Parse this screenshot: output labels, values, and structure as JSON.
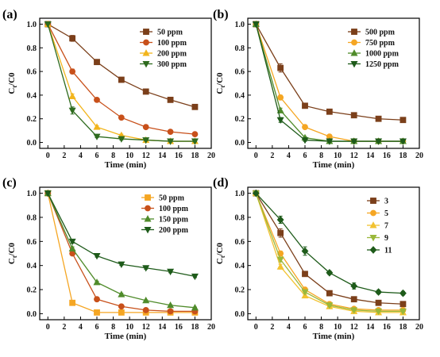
{
  "chart_data": [
    {
      "type": "line",
      "panel_label": "(a)",
      "xlabel": "Time (min)",
      "ylabel_main": "C",
      "ylabel_sub": "t",
      "ylabel_tail": "/C0",
      "xlim": [
        -1,
        20
      ],
      "ylim": [
        -0.05,
        1.05
      ],
      "xticks": [
        0,
        2,
        4,
        6,
        8,
        10,
        12,
        14,
        16,
        18,
        20
      ],
      "yticks": [
        0.0,
        0.2,
        0.4,
        0.6,
        0.8,
        1.0
      ],
      "ytick_labels": [
        "0.0",
        "0.2",
        "0.4",
        "0.6",
        "0.8",
        "1.0"
      ],
      "legend_position": "top-right",
      "x": [
        0,
        3,
        6,
        9,
        12,
        15,
        18
      ],
      "series": [
        {
          "name": "50 ppm",
          "color": "#7b3f1a",
          "marker": "square",
          "values": [
            1.0,
            0.88,
            0.68,
            0.53,
            0.43,
            0.36,
            0.3
          ],
          "errors": [
            0,
            0.025,
            0.015,
            0.012,
            0.01,
            0.01,
            0.015
          ]
        },
        {
          "name": "100 ppm",
          "color": "#c8501a",
          "marker": "circle",
          "values": [
            1.0,
            0.6,
            0.36,
            0.21,
            0.13,
            0.09,
            0.07
          ],
          "errors": [
            0,
            0.02,
            0.015,
            0.01,
            0.01,
            0.01,
            0.01
          ]
        },
        {
          "name": "200 ppm",
          "color": "#f2b51c",
          "marker": "triangle-up",
          "values": [
            1.0,
            0.39,
            0.13,
            0.06,
            0.02,
            0.01,
            0.01
          ],
          "errors": [
            0,
            0.02,
            0.01,
            0.01,
            0.005,
            0.005,
            0.005
          ]
        },
        {
          "name": "300 ppm",
          "color": "#2e6b1e",
          "marker": "triangle-down",
          "values": [
            1.0,
            0.27,
            0.05,
            0.03,
            0.02,
            0.01,
            0.01
          ],
          "errors": [
            0,
            0.03,
            0.01,
            0.01,
            0.005,
            0.005,
            0.005
          ]
        }
      ]
    },
    {
      "type": "line",
      "panel_label": "(b)",
      "xlabel": "Time (min)",
      "ylabel_main": "C",
      "ylabel_sub": "t",
      "ylabel_tail": "/C0",
      "xlim": [
        -1,
        20
      ],
      "ylim": [
        -0.05,
        1.05
      ],
      "xticks": [
        0,
        2,
        4,
        6,
        8,
        10,
        12,
        14,
        16,
        18,
        20
      ],
      "yticks": [
        0.0,
        0.2,
        0.4,
        0.6,
        0.8,
        1.0
      ],
      "ytick_labels": [
        "0.0",
        "0.2",
        "0.4",
        "0.6",
        "0.8",
        "1.0"
      ],
      "legend_position": "top-right",
      "x": [
        0,
        3,
        6,
        9,
        12,
        15,
        18
      ],
      "series": [
        {
          "name": "500 ppm",
          "color": "#7b3f1a",
          "marker": "square",
          "values": [
            1.0,
            0.63,
            0.31,
            0.26,
            0.23,
            0.2,
            0.19
          ],
          "errors": [
            0,
            0.035,
            0.015,
            0.015,
            0.01,
            0.01,
            0.015
          ]
        },
        {
          "name": "750 ppm",
          "color": "#f5a623",
          "marker": "circle",
          "values": [
            1.0,
            0.38,
            0.13,
            0.05,
            0.01,
            0.01,
            0.01
          ],
          "errors": [
            0,
            0.02,
            0.01,
            0.01,
            0.005,
            0.005,
            0.005
          ]
        },
        {
          "name": "1000 ppm",
          "color": "#4f8b2a",
          "marker": "triangle-up",
          "values": [
            1.0,
            0.27,
            0.04,
            0.01,
            0.01,
            0.01,
            0.01
          ],
          "errors": [
            0,
            0.02,
            0.01,
            0.005,
            0.005,
            0.005,
            0.005
          ]
        },
        {
          "name": "1250 ppm",
          "color": "#1e5b1a",
          "marker": "triangle-down",
          "values": [
            1.0,
            0.19,
            0.02,
            0.01,
            0.01,
            0.01,
            0.01
          ],
          "errors": [
            0,
            0.02,
            0.01,
            0.005,
            0.005,
            0.005,
            0.005
          ]
        }
      ]
    },
    {
      "type": "line",
      "panel_label": "(c)",
      "xlabel": "Time (min)",
      "ylabel_main": "C",
      "ylabel_sub": "t",
      "ylabel_tail": "/C0",
      "xlim": [
        -1,
        20
      ],
      "ylim": [
        -0.05,
        1.05
      ],
      "xticks": [
        0,
        2,
        4,
        6,
        8,
        10,
        12,
        14,
        16,
        18,
        20
      ],
      "yticks": [
        0.0,
        0.2,
        0.4,
        0.6,
        0.8,
        1.0
      ],
      "ytick_labels": [
        "0.0",
        "0.2",
        "0.4",
        "0.6",
        "0.8",
        "1.0"
      ],
      "legend_position": "top-right",
      "x": [
        0,
        3,
        6,
        9,
        12,
        15,
        18
      ],
      "series": [
        {
          "name": "50 ppm",
          "color": "#f5a623",
          "marker": "square",
          "values": [
            1.0,
            0.09,
            0.01,
            0.01,
            0.01,
            0.01,
            0.01
          ],
          "errors": [
            0,
            0.02,
            0.005,
            0.005,
            0.005,
            0.005,
            0.005
          ]
        },
        {
          "name": "100 ppm",
          "color": "#c8501a",
          "marker": "circle",
          "values": [
            1.0,
            0.5,
            0.12,
            0.06,
            0.03,
            0.02,
            0.02
          ],
          "errors": [
            0,
            0.015,
            0.01,
            0.01,
            0.005,
            0.005,
            0.005
          ]
        },
        {
          "name": "150 ppm",
          "color": "#4f8b2a",
          "marker": "triangle-up",
          "values": [
            1.0,
            0.54,
            0.26,
            0.16,
            0.11,
            0.07,
            0.05
          ],
          "errors": [
            0,
            0.015,
            0.01,
            0.01,
            0.005,
            0.005,
            0.005
          ]
        },
        {
          "name": "200 ppm",
          "color": "#1e5b1a",
          "marker": "triangle-down",
          "values": [
            1.0,
            0.6,
            0.48,
            0.41,
            0.38,
            0.35,
            0.31
          ],
          "errors": [
            0,
            0.015,
            0.01,
            0.01,
            0.01,
            0.01,
            0.01
          ]
        }
      ]
    },
    {
      "type": "line",
      "panel_label": "(d)",
      "xlabel": "Time (min)",
      "ylabel_main": "C",
      "ylabel_sub": "t",
      "ylabel_tail": "/C0",
      "xlim": [
        -1,
        20
      ],
      "ylim": [
        -0.05,
        1.05
      ],
      "xticks": [
        0,
        2,
        4,
        6,
        8,
        10,
        12,
        14,
        16,
        18,
        20
      ],
      "yticks": [
        0.0,
        0.2,
        0.4,
        0.6,
        0.8,
        1.0
      ],
      "ytick_labels": [
        "0.0",
        "0.2",
        "0.4",
        "0.6",
        "0.8",
        "1.0"
      ],
      "legend_position": "top-right",
      "x": [
        0,
        3,
        6,
        9,
        12,
        15,
        18
      ],
      "series": [
        {
          "name": "3",
          "color": "#7b3f1a",
          "marker": "square",
          "values": [
            1.0,
            0.67,
            0.33,
            0.17,
            0.12,
            0.09,
            0.08
          ],
          "errors": [
            0,
            0.035,
            0.02,
            0.01,
            0.01,
            0.01,
            0.01
          ]
        },
        {
          "name": "5",
          "color": "#f5a623",
          "marker": "circle",
          "values": [
            1.0,
            0.5,
            0.2,
            0.08,
            0.04,
            0.03,
            0.03
          ],
          "errors": [
            0,
            0.02,
            0.015,
            0.01,
            0.005,
            0.005,
            0.005
          ]
        },
        {
          "name": "7",
          "color": "#f2c230",
          "marker": "triangle-up",
          "values": [
            1.0,
            0.39,
            0.15,
            0.06,
            0.02,
            0.01,
            0.01
          ],
          "errors": [
            0,
            0.02,
            0.01,
            0.01,
            0.005,
            0.005,
            0.005
          ]
        },
        {
          "name": "9",
          "color": "#9ab83a",
          "marker": "triangle-down",
          "values": [
            1.0,
            0.45,
            0.18,
            0.07,
            0.03,
            0.02,
            0.02
          ],
          "errors": [
            0,
            0.02,
            0.01,
            0.01,
            0.005,
            0.005,
            0.005
          ]
        },
        {
          "name": "11",
          "color": "#1e5b1a",
          "marker": "diamond",
          "values": [
            1.0,
            0.78,
            0.52,
            0.34,
            0.23,
            0.18,
            0.17
          ],
          "errors": [
            0,
            0.03,
            0.035,
            0.015,
            0.025,
            0.015,
            0.015
          ]
        }
      ]
    }
  ]
}
